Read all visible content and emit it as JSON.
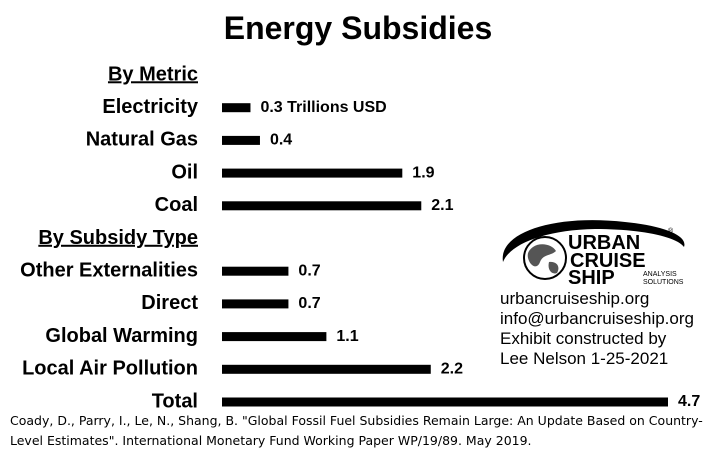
{
  "chart_data": {
    "type": "bar",
    "orientation": "horizontal",
    "title": "Energy Subsidies",
    "unit_label": "Trillions USD",
    "groups": [
      {
        "header": "By Metric",
        "categories": [
          "Electricity",
          "Natural Gas",
          "Oil",
          "Coal"
        ],
        "values": [
          0.3,
          0.4,
          1.9,
          2.1
        ]
      },
      {
        "header": "By Subsidy Type",
        "categories": [
          "Other Externalities",
          "Direct",
          "Global Warming",
          "Local Air Pollution"
        ],
        "values": [
          0.7,
          0.7,
          1.1,
          2.2
        ]
      },
      {
        "header": "",
        "categories": [
          "Total"
        ],
        "values": [
          4.7
        ]
      }
    ],
    "xlim": [
      0,
      4.7
    ],
    "grid": false,
    "legend": "none",
    "bar_color": "#000000"
  },
  "logo": {
    "line1": "URBAN",
    "line2": "CRUISE",
    "line3": "SHIP",
    "tag1": "ANALYSIS",
    "tag2": "SOLUTIONS",
    "reg": "®"
  },
  "info": {
    "website": "urbancruiseship.org",
    "email": "info@urbancruiseship.org",
    "credit1": "Exhibit constructed by",
    "credit2": "Lee Nelson 1-25-2021"
  },
  "source": "Coady, D., Parry, I., Le, N., Shang, B. \"Global Fossil Fuel Subsidies Remain Large: An Update Based on Country-Level Estimates\". International Monetary Fund Working Paper WP/19/89. May 2019."
}
